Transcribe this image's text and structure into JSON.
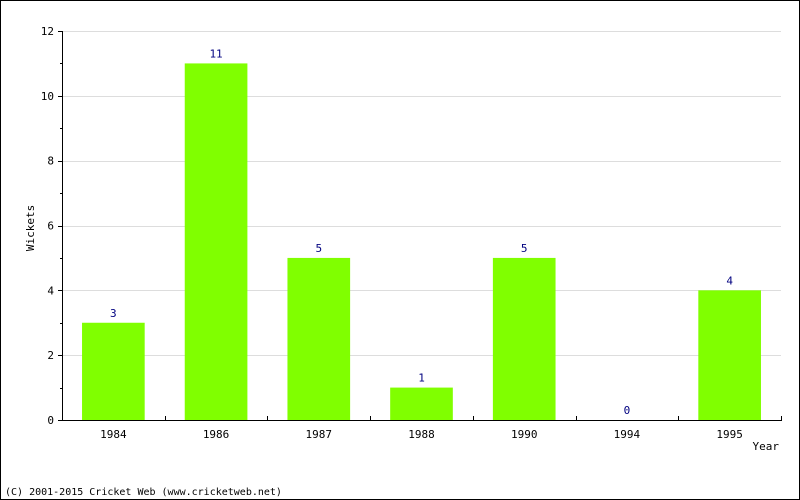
{
  "chart_data": {
    "type": "bar",
    "title": "",
    "xlabel": "Year",
    "ylabel": "Wickets",
    "categories": [
      "1984",
      "1986",
      "1987",
      "1988",
      "1990",
      "1994",
      "1995"
    ],
    "values": [
      3,
      11,
      5,
      1,
      5,
      0,
      4
    ],
    "data_labels": [
      "3",
      "11",
      "5",
      "1",
      "5",
      "0",
      "4"
    ],
    "ylim": [
      0,
      12
    ],
    "yticks": [
      0,
      2,
      4,
      6,
      8,
      10,
      12
    ],
    "ytick_labels": [
      "0",
      "2",
      "4",
      "6",
      "8",
      "10",
      "12"
    ],
    "grid": true,
    "colors": {
      "bar": "#80ff00",
      "data_label": "#000080",
      "grid": "#dddddd",
      "axis": "#000000",
      "text": "#000000"
    }
  },
  "footer": {
    "copyright": "(C) 2001-2015 Cricket Web (www.cricketweb.net)"
  }
}
